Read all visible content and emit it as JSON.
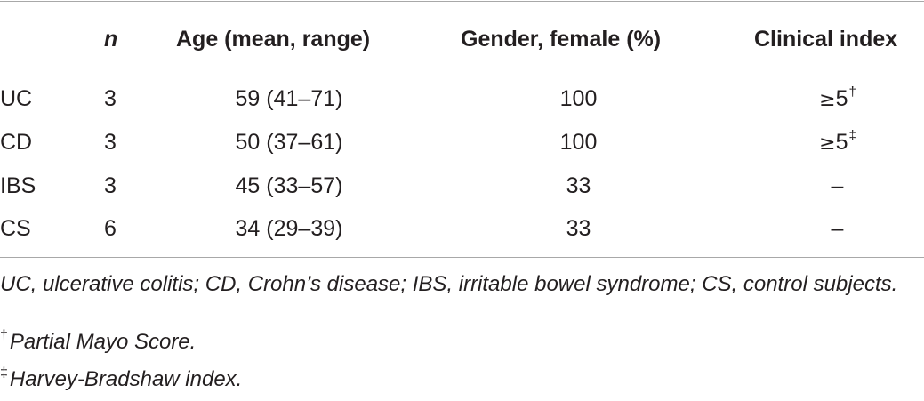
{
  "table": {
    "headers": {
      "label": "",
      "n": "n",
      "age": "Age (mean, range)",
      "gender": "Gender, female (%)",
      "index": "Clinical index"
    },
    "rows": [
      {
        "label": "UC",
        "n": "3",
        "age": "59 (41–71)",
        "gender": "100",
        "index_prefix": "≥",
        "index_value": "5",
        "index_mark": "†"
      },
      {
        "label": "CD",
        "n": "3",
        "age": "50 (37–61)",
        "gender": "100",
        "index_prefix": "≥",
        "index_value": "5",
        "index_mark": "‡"
      },
      {
        "label": "IBS",
        "n": "3",
        "age": "45 (33–57)",
        "gender": "33",
        "index_prefix": "",
        "index_value": "–",
        "index_mark": ""
      },
      {
        "label": "CS",
        "n": "6",
        "age": "34 (29–39)",
        "gender": "33",
        "index_prefix": "",
        "index_value": "–",
        "index_mark": ""
      }
    ]
  },
  "footnotes": {
    "abbreviations": "UC, ulcerative colitis; CD, Crohn’s disease; IBS, irritable bowel syndrome; CS, control subjects.",
    "note1_mark": "†",
    "note1_text": "Partial Mayo Score.",
    "note2_mark": "‡",
    "note2_text": "Harvey-Bradshaw index."
  }
}
